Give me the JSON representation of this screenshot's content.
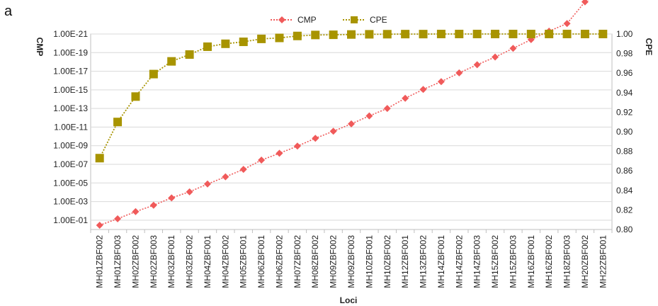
{
  "panel_label": "a",
  "chart_data": {
    "type": "line",
    "xlabel": "Loci",
    "ylabel_left": "CMP",
    "ylabel_right": "CPE",
    "legend_position": "top",
    "grid": true,
    "categories": [
      "MH01ZBF002",
      "MH01ZBF003",
      "MH02ZBF002",
      "MH02ZBF003",
      "MH03ZBF001",
      "MH03ZBF002",
      "MH04ZBF001",
      "MH04ZBF002",
      "MH05ZBF001",
      "MH06ZBF001",
      "MH06ZBF002",
      "MH07ZBF002",
      "MH08ZBF002",
      "MH09ZBF002",
      "MH09ZBF003",
      "MH10ZBF001",
      "MH10ZBF002",
      "MH12ZBF001",
      "MH13ZBF002",
      "MH14ZBF001",
      "MH14ZBF002",
      "MH14ZBF003",
      "MH15ZBF002",
      "MH15ZBF003",
      "MH16ZBF001",
      "MH16ZBF002",
      "MH18ZBF003",
      "MH20ZBF002",
      "MH22ZBF001"
    ],
    "left_axis": {
      "scale": "log",
      "reversed": true,
      "exp_min": -21,
      "exp_max": 0,
      "tick_exps": [
        -21,
        -19,
        -17,
        -15,
        -13,
        -11,
        -9,
        -7,
        -5,
        -3,
        -1
      ],
      "tick_labels": [
        "1.00E-21",
        "1.00E-19",
        "1.00E-17",
        "1.00E-15",
        "1.00E-13",
        "1.00E-11",
        "1.00E-09",
        "1.00E-07",
        "1.00E-05",
        "1.00E-03",
        "1.00E-01"
      ]
    },
    "right_axis": {
      "min": 0.8,
      "max": 1.0,
      "tick_values": [
        1.0,
        0.98,
        0.96,
        0.94,
        0.92,
        0.9,
        0.88,
        0.86,
        0.84,
        0.82,
        0.8
      ],
      "tick_labels": [
        "1.00",
        "0.98",
        "0.96",
        "0.94",
        "0.92",
        "0.90",
        "0.88",
        "0.86",
        "0.84",
        "0.82",
        "0.80"
      ]
    },
    "series": [
      {
        "name": "CMP",
        "axis": "left",
        "color": "#f05a5a",
        "marker": "diamond",
        "values": [
          0.35,
          0.07,
          0.012,
          0.0025,
          0.0004,
          9e-05,
          1.3e-05,
          2.2e-06,
          3.5e-07,
          3.5e-08,
          6.5e-09,
          1.1e-09,
          1.6e-10,
          2.8e-11,
          4.5e-12,
          6.3e-13,
          1e-13,
          8e-15,
          9e-16,
          1.3e-16,
          1.5e-17,
          2e-18,
          3e-19,
          3.5e-20,
          4e-21,
          5e-22,
          7.5e-23,
          3.5e-25,
          2e-26
        ]
      },
      {
        "name": "CPE",
        "axis": "right",
        "color": "#a89400",
        "marker": "square",
        "values": [
          0.873,
          0.91,
          0.936,
          0.959,
          0.972,
          0.979,
          0.987,
          0.99,
          0.992,
          0.995,
          0.996,
          0.998,
          0.999,
          0.9992,
          0.9995,
          0.9997,
          0.9998,
          0.9999,
          0.9999,
          1.0,
          1.0,
          1.0,
          1.0,
          1.0,
          1.0,
          1.0,
          1.0,
          1.0,
          1.0
        ]
      }
    ]
  }
}
